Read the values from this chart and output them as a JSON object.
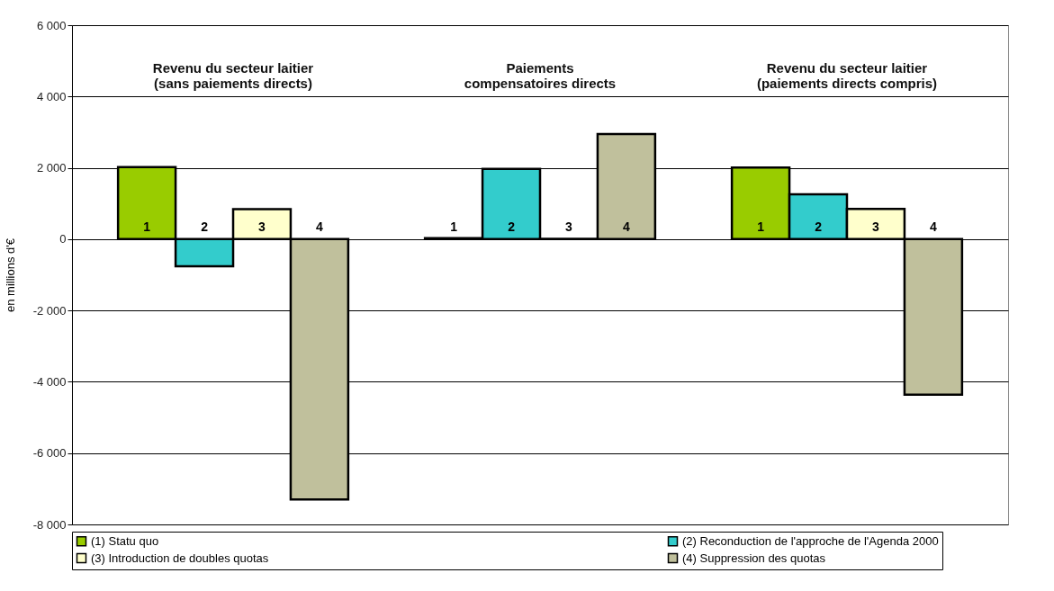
{
  "chart_data": {
    "type": "bar",
    "ylabel": "en millions d'€",
    "categories": [
      "Revenu du secteur laitier\n(sans paiements directs)",
      "Paiements\ncompensatoires directs",
      "Revenu du secteur laitier\n(paiements directs compris)"
    ],
    "series": [
      {
        "name": "(1) Statu quo",
        "color": "#99cc00",
        "values": [
          2020,
          30,
          2010
        ]
      },
      {
        "name": "(2) Reconduction de l'approche de l'Agenda 2000",
        "color": "#33cccc",
        "values": [
          -760,
          1970,
          1260
        ]
      },
      {
        "name": "(3) Introduction de doubles quotas",
        "color": "#ffffcc",
        "values": [
          840,
          10,
          850
        ]
      },
      {
        "name": "(4) Suppression des quotas",
        "color": "#c0c09c",
        "values": [
          -7300,
          2950,
          -4360
        ]
      }
    ],
    "annotations": [
      "1",
      "2",
      "3",
      "4",
      "1",
      "2",
      "3",
      "4",
      "1",
      "2",
      "3",
      "4"
    ],
    "ylim": [
      -8000,
      6000
    ],
    "yticks": [
      {
        "value": -8000,
        "label": "-8 000"
      },
      {
        "value": -6000,
        "label": "-6 000"
      },
      {
        "value": -4000,
        "label": "-4 000"
      },
      {
        "value": -2000,
        "label": "-2 000"
      },
      0,
      {
        "value": 2000,
        "label": "2 000"
      },
      {
        "value": 4000,
        "label": "4 000"
      },
      {
        "value": 6000,
        "label": "6 000"
      }
    ],
    "grid": "y",
    "legend": "bottom"
  }
}
